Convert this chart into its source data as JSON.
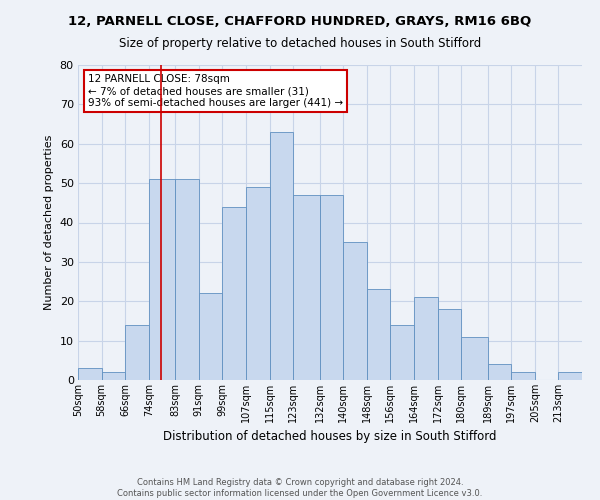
{
  "title_line1": "12, PARNELL CLOSE, CHAFFORD HUNDRED, GRAYS, RM16 6BQ",
  "title_line2": "Size of property relative to detached houses in South Stifford",
  "xlabel": "Distribution of detached houses by size in South Stifford",
  "ylabel": "Number of detached properties",
  "bin_labels": [
    "50sqm",
    "58sqm",
    "66sqm",
    "74sqm",
    "83sqm",
    "91sqm",
    "99sqm",
    "107sqm",
    "115sqm",
    "123sqm",
    "132sqm",
    "140sqm",
    "148sqm",
    "156sqm",
    "164sqm",
    "172sqm",
    "180sqm",
    "189sqm",
    "197sqm",
    "205sqm",
    "213sqm"
  ],
  "bin_edges": [
    50,
    58,
    66,
    74,
    83,
    91,
    99,
    107,
    115,
    123,
    132,
    140,
    148,
    156,
    164,
    172,
    180,
    189,
    197,
    205,
    213,
    221
  ],
  "bar_heights": [
    3,
    2,
    14,
    51,
    51,
    22,
    44,
    49,
    63,
    47,
    47,
    35,
    23,
    14,
    21,
    18,
    11,
    4,
    2,
    0,
    2
  ],
  "bar_color": "#c8d8ee",
  "bar_edge_color": "#6090c0",
  "annotation_box_text": "12 PARNELL CLOSE: 78sqm\n← 7% of detached houses are smaller (31)\n93% of semi-detached houses are larger (441) →",
  "annotation_box_facecolor": "white",
  "annotation_box_edgecolor": "#cc0000",
  "vertical_line_x": 78,
  "vertical_line_color": "#cc0000",
  "ylim": [
    0,
    80
  ],
  "yticks": [
    0,
    10,
    20,
    30,
    40,
    50,
    60,
    70,
    80
  ],
  "grid_color": "#c8d4e8",
  "footer_line1": "Contains HM Land Registry data © Crown copyright and database right 2024.",
  "footer_line2": "Contains public sector information licensed under the Open Government Licence v3.0.",
  "background_color": "#eef2f8",
  "title_fontsize": 9.5,
  "subtitle_fontsize": 8.5
}
